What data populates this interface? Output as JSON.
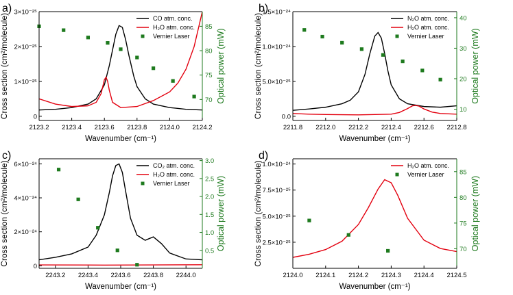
{
  "chart_data": [
    {
      "type": "line",
      "panel_label": "a)",
      "xlabel": "Wavenumber (cm⁻¹)",
      "ylabel_left": "Cross section (cm²/molecule)",
      "ylabel_right": "Optical power (mW)",
      "xlim": [
        2123.2,
        2124.2
      ],
      "xticks": [
        "2123.2",
        "2123.4",
        "2123.6",
        "2123.8",
        "2124.0",
        "2124.2"
      ],
      "ylim_left": [
        -1.2e-26,
        3e-25
      ],
      "yticks_left": [
        {
          "v": 0,
          "t": "0"
        },
        {
          "v": 1e-25,
          "t": "1×10⁻²⁵"
        },
        {
          "v": 2e-25,
          "t": "2×10⁻²⁵"
        },
        {
          "v": 3e-25,
          "t": "3×10⁻²⁵"
        }
      ],
      "ylim_right": [
        65.7,
        88
      ],
      "yticks_right": [
        "70",
        "75",
        "80",
        "85"
      ],
      "legend": [
        {
          "label": "CO atm. conc.",
          "kind": "line",
          "color": "#000000"
        },
        {
          "label": "H₂O atm. conc.",
          "kind": "line",
          "color": "#e3000f"
        },
        {
          "label": "Vernier Laser",
          "kind": "square",
          "color": "#1e7a1e"
        }
      ],
      "series": [
        {
          "name": "CO atm. conc.",
          "color": "#000000",
          "x": [
            2123.2,
            2123.3,
            2123.4,
            2123.5,
            2123.55,
            2123.6,
            2123.63,
            2123.65,
            2123.67,
            2123.69,
            2123.71,
            2123.73,
            2123.75,
            2123.78,
            2123.8,
            2123.85,
            2123.9,
            2124.0,
            2124.1,
            2124.2
          ],
          "y": [
            1.8e-26,
            2e-26,
            2.5e-26,
            3.5e-26,
            5e-26,
            9e-26,
            1.45e-25,
            1.9e-25,
            2.35e-25,
            2.6e-25,
            2.55e-25,
            2.2e-25,
            1.75e-25,
            1.15e-25,
            8.5e-26,
            5e-26,
            3.5e-26,
            2.5e-26,
            2e-26,
            1.8e-26
          ]
        },
        {
          "name": "H₂O atm. conc.",
          "color": "#e3000f",
          "x": [
            2123.2,
            2123.3,
            2123.4,
            2123.5,
            2123.55,
            2123.58,
            2123.6,
            2123.61,
            2123.62,
            2123.63,
            2123.65,
            2123.7,
            2123.8,
            2123.9,
            2124.0,
            2124.05,
            2124.1,
            2124.15,
            2124.18,
            2124.2
          ],
          "y": [
            5e-26,
            3.5e-26,
            2.8e-26,
            3e-26,
            4e-26,
            6.5e-26,
            1.05e-25,
            1.12e-25,
            1e-25,
            7.5e-26,
            4e-26,
            2.5e-26,
            2.8e-26,
            4.5e-26,
            7e-26,
            9.5e-26,
            1.35e-25,
            2e-25,
            2.6e-25,
            3e-25
          ]
        },
        {
          "name": "Vernier Laser",
          "kind": "scatter",
          "axis": "right",
          "color": "#1e7a1e",
          "x": [
            2123.2,
            2123.35,
            2123.5,
            2123.62,
            2123.7,
            2123.8,
            2123.9,
            2124.02,
            2124.15
          ],
          "y": [
            85.0,
            84.2,
            82.7,
            81.6,
            80.3,
            78.6,
            76.4,
            73.8,
            70.6
          ]
        }
      ]
    },
    {
      "type": "line",
      "panel_label": "b)",
      "xlabel": "Wavenumber (cm⁻¹)",
      "ylabel_left": "Cross section (cm²/molecule)",
      "ylabel_right": "Optical power (mW)",
      "xlim": [
        2211.8,
        2212.8
      ],
      "xticks": [
        "2211.8",
        "2212.0",
        "2212.2",
        "2212.4",
        "2212.6",
        "2212.8"
      ],
      "ylim_left": [
        -6e-26,
        1.5e-24
      ],
      "yticks_left": [
        {
          "v": 0,
          "t": "0.0"
        },
        {
          "v": 5e-25,
          "t": "5.0×10⁻²⁵"
        },
        {
          "v": 1e-24,
          "t": "1.0×10⁻²⁴"
        },
        {
          "v": 1.5e-24,
          "t": "1.5×10⁻²⁴"
        }
      ],
      "ylim_right": [
        6.3,
        42
      ],
      "yticks_right": [
        "10",
        "20",
        "30",
        "40"
      ],
      "legend": [
        {
          "label": "N₂O atm. conc.",
          "kind": "line",
          "color": "#000000"
        },
        {
          "label": "H₂O atm. conc.",
          "kind": "line",
          "color": "#e3000f"
        },
        {
          "label": "Vernier Laser",
          "kind": "square",
          "color": "#1e7a1e"
        }
      ],
      "series": [
        {
          "name": "N₂O atm. conc.",
          "color": "#000000",
          "x": [
            2211.8,
            2211.9,
            2212.0,
            2212.1,
            2212.15,
            2212.2,
            2212.24,
            2212.27,
            2212.3,
            2212.32,
            2212.34,
            2212.36,
            2212.38,
            2212.4,
            2212.45,
            2212.5,
            2212.6,
            2212.7,
            2212.8
          ],
          "y": [
            8.5e-26,
            1.05e-25,
            1.3e-25,
            1.8e-25,
            2.3e-25,
            3.5e-25,
            6e-25,
            9e-25,
            1.15e-24,
            1.2e-24,
            1.12e-24,
            9e-25,
            6.5e-25,
            4.5e-25,
            2.5e-25,
            1.8e-25,
            1.4e-25,
            1.3e-25,
            1.5e-25
          ]
        },
        {
          "name": "H₂O atm. conc.",
          "color": "#e3000f",
          "x": [
            2211.8,
            2211.9,
            2212.0,
            2212.2,
            2212.4,
            2212.45,
            2212.5,
            2212.53,
            2212.55,
            2212.57,
            2212.6,
            2212.65,
            2212.7,
            2212.8
          ],
          "y": [
            4e-26,
            3e-26,
            2.5e-26,
            2e-26,
            3e-26,
            5.5e-26,
            1.1e-25,
            1.5e-25,
            1.55e-25,
            1.45e-25,
            1.05e-25,
            6e-26,
            4e-26,
            3e-26
          ]
        },
        {
          "name": "Vernier Laser",
          "kind": "scatter",
          "axis": "right",
          "color": "#1e7a1e",
          "x": [
            2211.87,
            2211.98,
            2212.1,
            2212.22,
            2212.35,
            2212.47,
            2212.59,
            2212.7
          ],
          "y": [
            36.0,
            33.8,
            31.8,
            29.7,
            27.8,
            25.7,
            22.7,
            19.7
          ]
        }
      ]
    },
    {
      "type": "line",
      "panel_label": "c)",
      "xlabel": "Wavenumber (cm⁻¹)",
      "ylabel_left": "Cross section (cm²/molecule)",
      "ylabel_right": "Optical power (mW)",
      "xlim": [
        2243.1,
        2244.1
      ],
      "xticks": [
        "2243.2",
        "2243.4",
        "2243.6",
        "2243.8",
        "2244.0"
      ],
      "ylim_left": [
        -1.5e-25,
        6.3e-24
      ],
      "yticks_left": [
        {
          "v": 0,
          "t": "0"
        },
        {
          "v": 2e-24,
          "t": "2×10⁻²⁴"
        },
        {
          "v": 4e-24,
          "t": "4×10⁻²⁴"
        },
        {
          "v": 6e-24,
          "t": "6×10⁻²⁴"
        }
      ],
      "ylim_right": [
        0,
        3.05
      ],
      "yticks_right": [
        "0.5",
        "1.0",
        "1.5",
        "2.0",
        "2.5",
        "3.0"
      ],
      "legend": [
        {
          "label": "CO₂ atm. conc.",
          "kind": "line",
          "color": "#000000"
        },
        {
          "label": "H₂O atm. conc.",
          "kind": "line",
          "color": "#e3000f"
        },
        {
          "label": "Vernier Laser",
          "kind": "square",
          "color": "#1e7a1e"
        }
      ],
      "series": [
        {
          "name": "CO₂ atm. conc.",
          "color": "#000000",
          "x": [
            2243.1,
            2243.2,
            2243.3,
            2243.4,
            2243.45,
            2243.5,
            2243.53,
            2243.55,
            2243.57,
            2243.59,
            2243.61,
            2243.63,
            2243.66,
            2243.7,
            2243.75,
            2243.8,
            2243.85,
            2243.9,
            2244.0,
            2244.1
          ],
          "y": [
            3.5e-25,
            5e-25,
            7e-25,
            1.1e-24,
            1.8e-24,
            3e-24,
            4.3e-24,
            5.3e-24,
            5.9e-24,
            6e-24,
            5.5e-24,
            4.4e-24,
            2.8e-24,
            1.8e-24,
            1.5e-24,
            1.7e-24,
            1.3e-24,
            7.5e-25,
            4e-25,
            3.5e-25
          ]
        },
        {
          "name": "H₂O atm. conc.",
          "color": "#e3000f",
          "x": [
            2243.1,
            2243.5,
            2243.8,
            2244.1
          ],
          "y": [
            5e-26,
            4e-26,
            5e-26,
            6e-26
          ]
        },
        {
          "name": "Vernier Laser",
          "kind": "scatter",
          "axis": "right",
          "color": "#1e7a1e",
          "x": [
            2243.22,
            2243.34,
            2243.46,
            2243.58,
            2243.7
          ],
          "y": [
            2.75,
            1.92,
            1.13,
            0.5,
            0.1
          ]
        }
      ]
    },
    {
      "type": "line",
      "panel_label": "d)",
      "xlabel": "Wavenumber (cm⁻¹)",
      "ylabel_left": "Cross section (cm²/molecule)",
      "ylabel_right": "Optical power (mW)",
      "xlim": [
        2124.0,
        2124.5
      ],
      "xticks": [
        "2124.0",
        "2124.1",
        "2124.2",
        "2124.3",
        "2124.4",
        "2124.5"
      ],
      "ylim_left": [
        0,
        1.05e-24
      ],
      "yticks_left": [
        {
          "v": 2.5e-25,
          "t": "2.5×10⁻²⁵"
        },
        {
          "v": 5e-25,
          "t": "5.0×10⁻²⁵"
        },
        {
          "v": 7.5e-25,
          "t": "7.5×10⁻²⁵"
        },
        {
          "v": 1e-24,
          "t": "1.0×10⁻²⁴"
        }
      ],
      "ylim_right": [
        66.2,
        87.5
      ],
      "yticks_right": [
        "70",
        "75",
        "80",
        "85"
      ],
      "legend": [
        {
          "label": "H₂O atm. conc.",
          "kind": "line",
          "color": "#e3000f"
        },
        {
          "label": "Vernier Laser",
          "kind": "square",
          "color": "#1e7a1e"
        }
      ],
      "series": [
        {
          "name": "H₂O atm. conc.",
          "color": "#e3000f",
          "x": [
            2124.0,
            2124.05,
            2124.1,
            2124.15,
            2124.2,
            2124.23,
            2124.26,
            2124.28,
            2124.3,
            2124.32,
            2124.35,
            2124.4,
            2124.45,
            2124.5
          ],
          "y": [
            1.05e-25,
            1.35e-25,
            1.8e-25,
            2.6e-25,
            4.2e-25,
            5.8e-25,
            7.6e-25,
            8.5e-25,
            8.2e-25,
            7e-25,
            4.8e-25,
            2.7e-25,
            1.9e-25,
            1.6e-25
          ]
        },
        {
          "name": "Vernier Laser",
          "kind": "scatter",
          "axis": "right",
          "color": "#1e7a1e",
          "x": [
            2124.05,
            2124.17,
            2124.29
          ],
          "y": [
            75.5,
            72.7,
            69.6
          ]
        }
      ]
    }
  ]
}
